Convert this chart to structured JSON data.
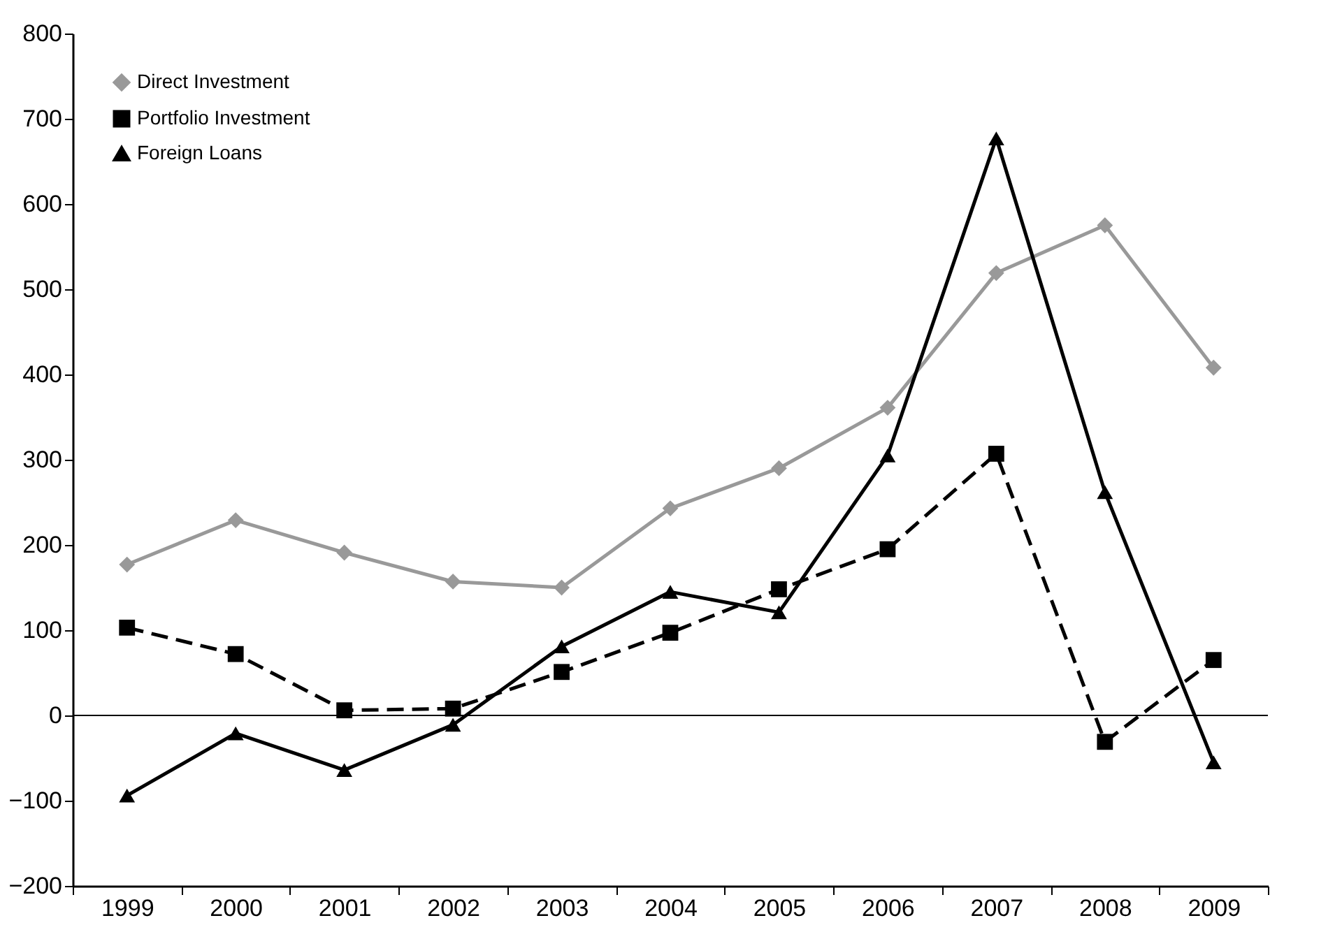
{
  "chart_data": {
    "type": "line",
    "categories": [
      "1999",
      "2000",
      "2001",
      "2002",
      "2003",
      "2004",
      "2005",
      "2006",
      "2007",
      "2008",
      "2009"
    ],
    "series": [
      {
        "name": "Direct Investment",
        "color": "#999999",
        "marker": "diamond",
        "line_style": "solid",
        "values": [
          177,
          229,
          191,
          157,
          150,
          243,
          290,
          361,
          519,
          575,
          408
        ]
      },
      {
        "name": "Portfolio Investment",
        "color": "#000000",
        "marker": "square",
        "line_style": "dashed",
        "values": [
          103,
          72,
          6,
          8,
          51,
          97,
          148,
          195,
          307,
          -31,
          65
        ]
      },
      {
        "name": "Foreign  Loans",
        "color": "#000000",
        "marker": "triangle",
        "line_style": "solid",
        "values": [
          -94,
          -21,
          -64,
          -11,
          81,
          145,
          121,
          305,
          677,
          262,
          -55
        ]
      }
    ],
    "ylim": [
      -200,
      800
    ],
    "yticks": [
      -200,
      -100,
      0,
      100,
      200,
      300,
      400,
      500,
      600,
      700,
      800
    ],
    "ref_lines": [
      {
        "axis": "y",
        "value": 0,
        "color": "#000000"
      }
    ],
    "grid": false,
    "legend": "top left"
  }
}
